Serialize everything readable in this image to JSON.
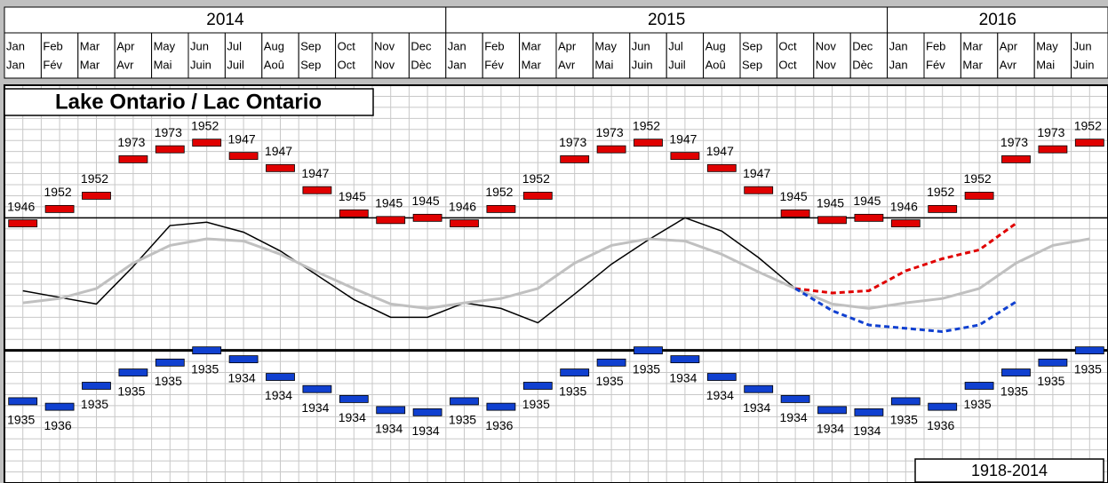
{
  "chart_data": {
    "type": "line",
    "title": "Lake Ontario / Lac Ontario",
    "period": "1918-2014",
    "year_groups": [
      "2014",
      "2015",
      "2016"
    ],
    "categories": [
      "Jan",
      "Feb",
      "Mar",
      "Apr",
      "May",
      "Jun",
      "Jul",
      "Aug",
      "Sep",
      "Oct",
      "Nov",
      "Dec",
      "Jan",
      "Feb",
      "Mar",
      "Apr",
      "May",
      "Jun",
      "Jul",
      "Aug",
      "Sep",
      "Oct",
      "Nov",
      "Dec",
      "Jan",
      "Feb",
      "Mar",
      "Apr",
      "May",
      "Jun"
    ],
    "categories_fr": [
      "Jan",
      "Fév",
      "Mar",
      "Avr",
      "Mai",
      "Juin",
      "Juil",
      "Aoû",
      "Sep",
      "Oct",
      "Nov",
      "Dèc",
      "Jan",
      "Fév",
      "Mar",
      "Avr",
      "Mai",
      "Juin",
      "Juil",
      "Aoû",
      "Sep",
      "Oct",
      "Nov",
      "Dèc",
      "Jan",
      "Fév",
      "Mar",
      "Avr",
      "Mai",
      "Juin"
    ],
    "record_high": {
      "color": "#e00000",
      "values": [
        23.5,
        24.8,
        26.0,
        29.3,
        30.2,
        30.8,
        29.6,
        28.5,
        26.5,
        24.4,
        23.8,
        24.0,
        23.5,
        24.8,
        26.0,
        29.3,
        30.2,
        30.8,
        29.6,
        28.5,
        26.5,
        24.4,
        23.8,
        24.0,
        23.5,
        24.8,
        26.0,
        29.3,
        30.2,
        30.8
      ],
      "years": [
        "1946",
        "1952",
        "1952",
        "1973",
        "1973",
        "1952",
        "1947",
        "1947",
        "1947",
        "1945",
        "1945",
        "1945",
        "1946",
        "1952",
        "1952",
        "1973",
        "1973",
        "1952",
        "1947",
        "1947",
        "1947",
        "1945",
        "1945",
        "1945",
        "1946",
        "1952",
        "1952",
        "1973",
        "1973",
        "1952"
      ]
    },
    "record_low": {
      "color": "#1040d0",
      "values": [
        7.4,
        6.9,
        8.8,
        10.0,
        10.9,
        12.0,
        11.2,
        9.6,
        8.5,
        7.6,
        6.6,
        6.4,
        7.4,
        6.9,
        8.8,
        10.0,
        10.9,
        12.0,
        11.2,
        9.6,
        8.5,
        7.6,
        6.6,
        6.4,
        7.4,
        6.9,
        8.8,
        10.0,
        10.9,
        12.0
      ],
      "years": [
        "1935",
        "1936",
        "1935",
        "1935",
        "1935",
        "1935",
        "1934",
        "1934",
        "1934",
        "1934",
        "1934",
        "1934",
        "1935",
        "1936",
        "1935",
        "1935",
        "1935",
        "1935",
        "1934",
        "1934",
        "1934",
        "1934",
        "1934",
        "1934",
        "1935",
        "1936",
        "1935",
        "1935",
        "1935",
        "1935"
      ]
    },
    "series": [
      {
        "color": "#000000",
        "dashed": false,
        "values": [
          17.4,
          16.8,
          16.2,
          19.6,
          23.3,
          23.6,
          22.7,
          21.0,
          18.8,
          16.6,
          15.0,
          15.0,
          16.3,
          15.8,
          14.5,
          17.1,
          19.8,
          22.0,
          24.0,
          22.8,
          20.4,
          17.6,
          null,
          null,
          null,
          null,
          null,
          null,
          null,
          null
        ]
      },
      {
        "color": "#c0c0c0",
        "dashed": false,
        "values": [
          16.3,
          16.7,
          17.6,
          19.9,
          21.5,
          22.1,
          21.9,
          20.7,
          19.1,
          17.6,
          16.2,
          15.8,
          16.3,
          16.7,
          17.6,
          19.9,
          21.5,
          22.1,
          21.9,
          20.7,
          19.1,
          17.6,
          16.2,
          15.8,
          16.3,
          16.7,
          17.6,
          19.9,
          21.5,
          22.1
        ]
      },
      {
        "color": "#e00000",
        "dashed": true,
        "values": [
          null,
          null,
          null,
          null,
          null,
          null,
          null,
          null,
          null,
          null,
          null,
          null,
          null,
          null,
          null,
          null,
          null,
          null,
          null,
          null,
          null,
          17.6,
          17.2,
          17.4,
          19.2,
          20.3,
          21.1,
          23.5,
          null,
          null
        ]
      },
      {
        "color": "#1040d0",
        "dashed": true,
        "values": [
          null,
          null,
          null,
          null,
          null,
          null,
          null,
          null,
          null,
          null,
          null,
          null,
          null,
          null,
          null,
          null,
          null,
          null,
          null,
          null,
          null,
          17.6,
          15.6,
          14.3,
          14.0,
          13.7,
          14.3,
          16.4,
          null,
          null
        ]
      }
    ],
    "ylim": [
      0,
      36
    ],
    "grid": true,
    "reference_lines": [
      24,
      12
    ]
  }
}
